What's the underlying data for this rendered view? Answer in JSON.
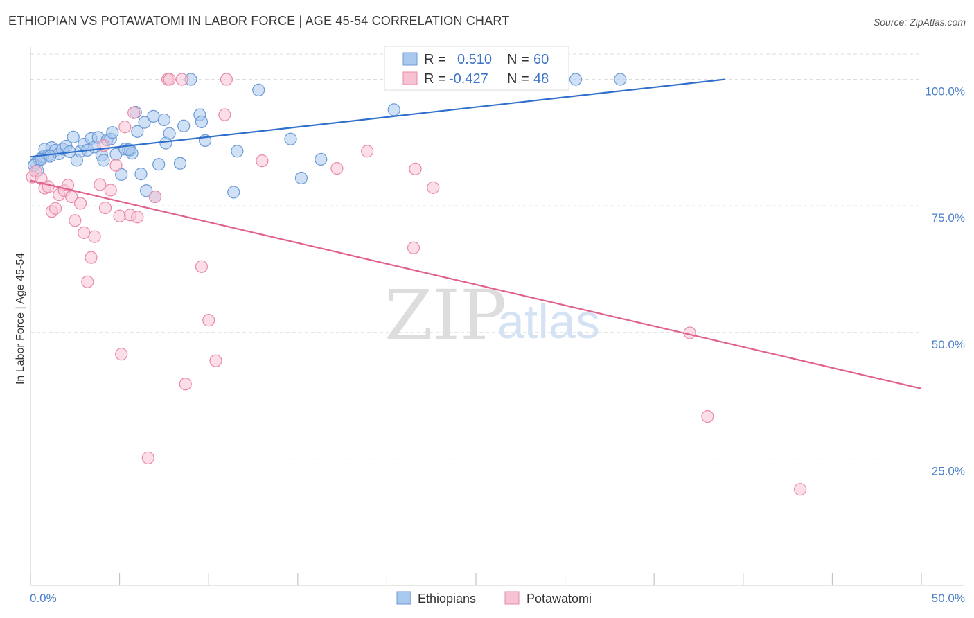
{
  "header": {
    "title": "ETHIOPIAN VS POTAWATOMI IN LABOR FORCE | AGE 45-54 CORRELATION CHART",
    "source": "Source: ZipAtlas.com"
  },
  "watermark": {
    "zip": "ZIP",
    "atlas": "atlas"
  },
  "stats": {
    "ethiopians": {
      "r_label": "R =",
      "r_value": "0.510",
      "n_label": "N =",
      "n_value": "60"
    },
    "potawatomi": {
      "r_label": "R =",
      "r_value": "-0.427",
      "n_label": "N =",
      "n_value": "48"
    }
  },
  "colors": {
    "blue_fill": "#a9c8ee",
    "blue_stroke": "#6c9ad6",
    "blue_line": "#2f6fcc",
    "pink_fill": "#f7c3d3",
    "pink_stroke": "#e98aa8",
    "pink_line": "#e0608e",
    "grid": "#dddddd",
    "axis_text": "#4a7fc8"
  },
  "chart_data": {
    "type": "scatter",
    "title": "ETHIOPIAN VS POTAWATOMI IN LABOR FORCE | AGE 45-54 CORRELATION CHART",
    "xlabel": "",
    "ylabel": "In Labor Force | Age 45-54",
    "xlim": [
      0,
      50
    ],
    "ylim": [
      0,
      105
    ],
    "x_tick_labels": [
      {
        "value": 0,
        "label": "0.0%"
      },
      {
        "value": 50,
        "label": "50.0%"
      }
    ],
    "y_tick_labels": [
      {
        "value": 25,
        "label": "25.0%"
      },
      {
        "value": 50,
        "label": "50.0%"
      },
      {
        "value": 75,
        "label": "75.0%"
      },
      {
        "value": 100,
        "label": "100.0%"
      }
    ],
    "grid": true,
    "legend_position": "bottom-center",
    "series": [
      {
        "name": "Ethiopians",
        "color": "#a9c8ee",
        "trend": {
          "x": [
            0,
            39
          ],
          "y": [
            84.7,
            100
          ]
        },
        "points": [
          [
            0.3,
            83.5
          ],
          [
            0.5,
            84.0
          ],
          [
            0.7,
            84.7
          ],
          [
            0.8,
            86.2
          ],
          [
            1.0,
            85.0
          ],
          [
            1.2,
            86.5
          ],
          [
            1.4,
            86.0
          ],
          [
            1.6,
            85.3
          ],
          [
            1.8,
            86.2
          ],
          [
            2.0,
            86.8
          ],
          [
            2.4,
            88.6
          ],
          [
            2.6,
            84.0
          ],
          [
            2.8,
            85.8
          ],
          [
            3.0,
            87.2
          ],
          [
            3.2,
            86.0
          ],
          [
            3.4,
            88.3
          ],
          [
            3.6,
            86.6
          ],
          [
            3.8,
            88.5
          ],
          [
            4.0,
            85.0
          ],
          [
            4.1,
            84.0
          ],
          [
            4.3,
            88.0
          ],
          [
            4.5,
            88.2
          ],
          [
            4.6,
            89.5
          ],
          [
            4.8,
            85.2
          ],
          [
            5.1,
            81.2
          ],
          [
            5.3,
            86.2
          ],
          [
            5.6,
            86.0
          ],
          [
            5.7,
            85.4
          ],
          [
            5.9,
            93.5
          ],
          [
            6.0,
            89.7
          ],
          [
            6.2,
            81.3
          ],
          [
            6.4,
            91.5
          ],
          [
            6.5,
            78.0
          ],
          [
            6.9,
            92.7
          ],
          [
            7.0,
            76.8
          ],
          [
            7.2,
            83.2
          ],
          [
            7.5,
            92.0
          ],
          [
            7.6,
            87.4
          ],
          [
            7.8,
            89.3
          ],
          [
            8.4,
            83.4
          ],
          [
            8.6,
            90.8
          ],
          [
            9.0,
            100
          ],
          [
            9.5,
            93.0
          ],
          [
            9.6,
            91.6
          ],
          [
            9.8,
            87.9
          ],
          [
            11.4,
            77.7
          ],
          [
            11.6,
            85.8
          ],
          [
            12.8,
            97.9
          ],
          [
            14.6,
            88.2
          ],
          [
            15.2,
            80.5
          ],
          [
            16.3,
            84.2
          ],
          [
            20.4,
            94.0
          ],
          [
            30.6,
            100
          ],
          [
            33.1,
            100
          ],
          [
            0.2,
            83.0
          ],
          [
            0.4,
            82.0
          ],
          [
            0.6,
            84.2
          ],
          [
            1.1,
            84.8
          ],
          [
            2.2,
            85.7
          ],
          [
            5.5,
            86.1
          ]
        ]
      },
      {
        "name": "Potawatomi",
        "color": "#f7c3d3",
        "trend": {
          "x": [
            0,
            50
          ],
          "y": [
            80,
            38.9
          ]
        },
        "points": [
          [
            0.1,
            80.7
          ],
          [
            0.3,
            81.8
          ],
          [
            0.6,
            80.4
          ],
          [
            0.8,
            78.5
          ],
          [
            1.0,
            78.8
          ],
          [
            1.2,
            73.9
          ],
          [
            1.4,
            74.5
          ],
          [
            1.6,
            77.2
          ],
          [
            1.9,
            78.0
          ],
          [
            2.1,
            79.1
          ],
          [
            2.3,
            76.8
          ],
          [
            2.5,
            72.1
          ],
          [
            2.8,
            75.5
          ],
          [
            3.0,
            69.7
          ],
          [
            3.2,
            60.0
          ],
          [
            3.4,
            64.8
          ],
          [
            3.6,
            68.9
          ],
          [
            3.9,
            79.2
          ],
          [
            4.1,
            86.9
          ],
          [
            4.2,
            74.6
          ],
          [
            4.5,
            78.1
          ],
          [
            4.8,
            83.0
          ],
          [
            5.0,
            73.0
          ],
          [
            5.1,
            45.7
          ],
          [
            5.3,
            90.6
          ],
          [
            5.6,
            73.2
          ],
          [
            5.8,
            93.4
          ],
          [
            6.0,
            72.8
          ],
          [
            6.6,
            25.2
          ],
          [
            7.0,
            76.8
          ],
          [
            7.7,
            100
          ],
          [
            7.8,
            100
          ],
          [
            8.5,
            100
          ],
          [
            8.7,
            39.8
          ],
          [
            9.6,
            63.0
          ],
          [
            10.0,
            52.4
          ],
          [
            10.4,
            44.4
          ],
          [
            10.9,
            93.0
          ],
          [
            11.0,
            100
          ],
          [
            13.0,
            83.9
          ],
          [
            17.2,
            82.4
          ],
          [
            18.9,
            85.8
          ],
          [
            21.5,
            66.7
          ],
          [
            21.6,
            82.3
          ],
          [
            22.6,
            78.6
          ],
          [
            37.0,
            49.9
          ],
          [
            38.0,
            33.4
          ],
          [
            43.2,
            19.0
          ]
        ]
      }
    ]
  },
  "legend": {
    "items": [
      "Ethiopians",
      "Potawatomi"
    ]
  }
}
